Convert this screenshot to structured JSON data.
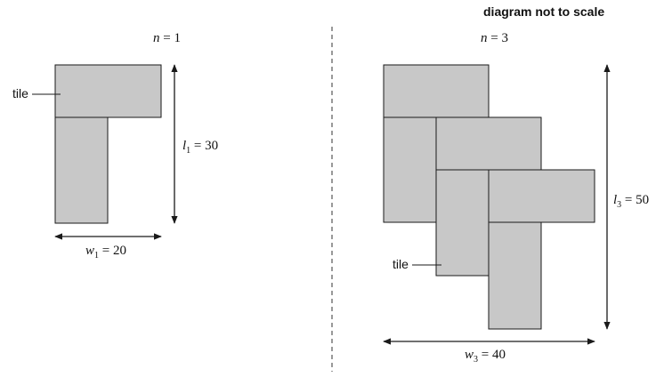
{
  "header": {
    "scale_note": "diagram not to scale"
  },
  "left": {
    "n_label": "n = 1",
    "n_var": "n",
    "n_rest": " = 1",
    "tile_label": "tile",
    "l_var": "l",
    "l_sub": "1",
    "l_rest": " = 30",
    "w_var": "w",
    "w_sub": "1",
    "w_rest": " = 20"
  },
  "right": {
    "n_var": "n",
    "n_rest": " = 3",
    "tile_label": "tile",
    "l_var": "l",
    "l_sub": "3",
    "l_rest": " = 50",
    "w_var": "w",
    "w_sub": "3",
    "w_rest": " = 40"
  },
  "colors": {
    "tile_fill": "#c8c8c8",
    "stroke": "#1a1a1a",
    "background": "#ffffff"
  }
}
